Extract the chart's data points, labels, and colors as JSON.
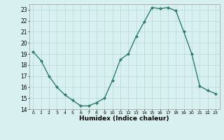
{
  "x": [
    0,
    1,
    2,
    3,
    4,
    5,
    6,
    7,
    8,
    9,
    10,
    11,
    12,
    13,
    14,
    15,
    16,
    17,
    18,
    19,
    20,
    21,
    22,
    23
  ],
  "y": [
    19.2,
    18.4,
    17.0,
    16.0,
    15.3,
    14.8,
    14.3,
    14.3,
    14.6,
    15.0,
    16.6,
    18.5,
    19.0,
    20.6,
    21.9,
    23.2,
    23.1,
    23.2,
    22.9,
    21.0,
    19.0,
    16.1,
    15.7,
    15.4
  ],
  "xlim": [
    -0.5,
    23.5
  ],
  "ylim": [
    14,
    23.5
  ],
  "yticks": [
    14,
    15,
    16,
    17,
    18,
    19,
    20,
    21,
    22,
    23
  ],
  "xticks": [
    0,
    1,
    2,
    3,
    4,
    5,
    6,
    7,
    8,
    9,
    10,
    11,
    12,
    13,
    14,
    15,
    16,
    17,
    18,
    19,
    20,
    21,
    22,
    23
  ],
  "xlabel": "Humidex (Indice chaleur)",
  "line_color": "#2e7d6e",
  "marker_color": "#2e7d6e",
  "bg_color": "#d8f0f0",
  "grid_color": "#b8d8d8"
}
